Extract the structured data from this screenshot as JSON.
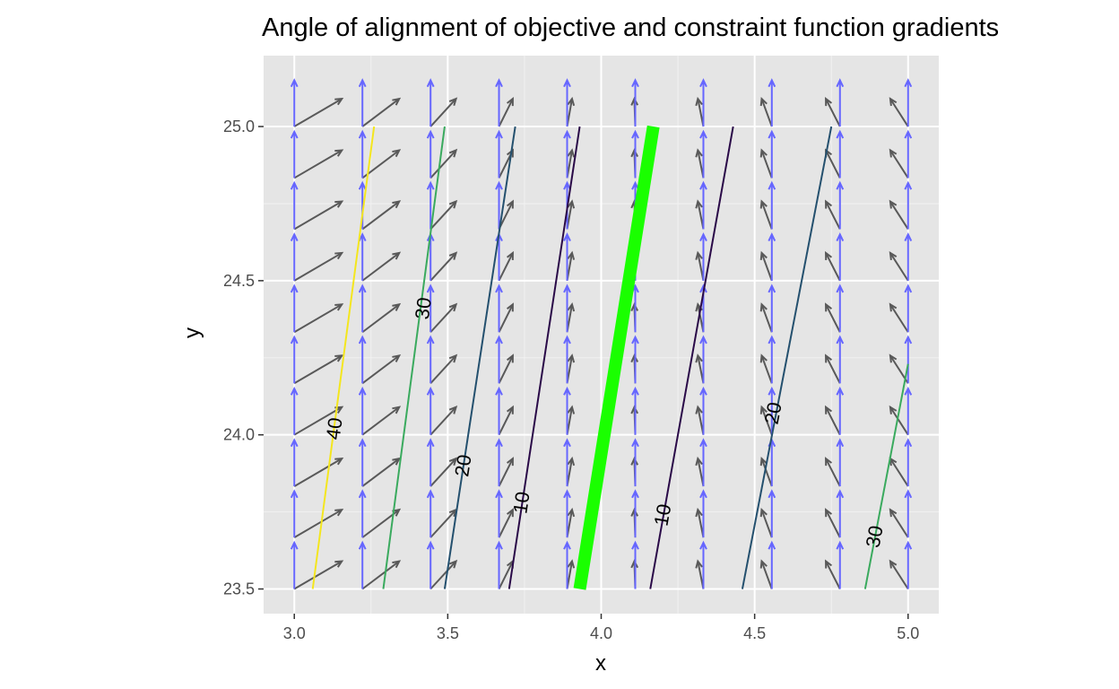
{
  "chart_data": {
    "type": "vector-field-with-contours",
    "title": "Angle of alignment of objective and constraint function gradients",
    "xlabel": "x",
    "ylabel": "y",
    "xlim": [
      2.9,
      5.1
    ],
    "ylim": [
      23.42,
      25.23
    ],
    "x_ticks": [
      3.0,
      3.5,
      4.0,
      4.5,
      5.0
    ],
    "y_ticks": [
      23.5,
      24.0,
      24.5,
      25.0
    ],
    "x_tick_labels": [
      "3.0",
      "3.5",
      "4.0",
      "4.5",
      "5.0"
    ],
    "y_tick_labels": [
      "23.5",
      "24.0",
      "24.5",
      "25.0"
    ],
    "grid": true,
    "panel_color": "#e5e5e5",
    "vector_field": {
      "x": [
        3.0,
        3.222,
        3.444,
        3.667,
        3.889,
        4.111,
        4.333,
        4.556,
        4.778,
        5.0
      ],
      "y": [
        23.5,
        23.667,
        23.833,
        24.0,
        24.167,
        24.333,
        24.5,
        24.667,
        24.833,
        25.0
      ],
      "constraint_gradient": {
        "color": "#6666ff",
        "dx": 0.0,
        "dy": 0.15
      },
      "objective_gradient": {
        "color": "#595959",
        "dx_at_column": [
          0.155,
          0.12,
          0.083,
          0.045,
          0.016,
          -0.003,
          -0.018,
          -0.033,
          -0.046,
          -0.058
        ],
        "dy_at_column": [
          0.09,
          0.09,
          0.09,
          0.09,
          0.09,
          0.09,
          0.09,
          0.09,
          0.09,
          0.09
        ]
      }
    },
    "contours": [
      {
        "level": 40,
        "label": "40",
        "color": "#f4e61e",
        "points": [
          [
            3.06,
            23.5
          ],
          [
            3.26,
            25.0
          ]
        ],
        "label_at": [
          3.13,
          24.02
        ]
      },
      {
        "level": 30,
        "label": "30",
        "color": "#3aaa5e",
        "points": [
          [
            3.29,
            23.5
          ],
          [
            3.49,
            25.0
          ]
        ],
        "label_at": [
          3.42,
          24.41
        ]
      },
      {
        "level": 20,
        "label": "20",
        "color": "#24506e",
        "points": [
          [
            3.49,
            23.5
          ],
          [
            3.72,
            25.0
          ]
        ],
        "label_at": [
          3.55,
          23.9
        ]
      },
      {
        "level": 10,
        "label": "10",
        "color": "#2a0a48",
        "points": [
          [
            3.7,
            23.5
          ],
          [
            3.93,
            25.0
          ]
        ],
        "label_at": [
          3.74,
          23.78
        ]
      },
      {
        "level": 0,
        "label": "",
        "color": "#1aff00",
        "width": 14,
        "points": [
          [
            3.93,
            23.5
          ],
          [
            4.17,
            25.0
          ]
        ]
      },
      {
        "level": 10,
        "label": "10",
        "color": "#2a0a48",
        "points": [
          [
            4.16,
            23.5
          ],
          [
            4.43,
            25.0
          ]
        ],
        "label_at": [
          4.2,
          23.74
        ]
      },
      {
        "level": 20,
        "label": "20",
        "color": "#24506e",
        "points": [
          [
            4.46,
            23.5
          ],
          [
            4.75,
            25.0
          ]
        ],
        "label_at": [
          4.56,
          24.07
        ]
      },
      {
        "level": 30,
        "label": "30",
        "color": "#3aaa5e",
        "points": [
          [
            4.86,
            23.5
          ],
          [
            5.0,
            24.23
          ]
        ],
        "label_at": [
          4.89,
          23.67
        ]
      }
    ]
  }
}
